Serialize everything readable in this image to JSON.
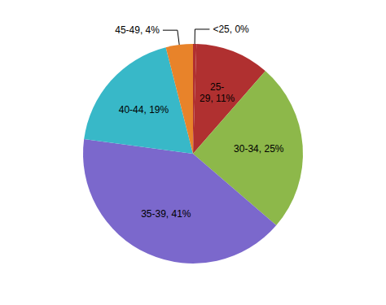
{
  "chart_data": {
    "type": "pie",
    "categories": [
      "<25, 0%",
      "25-\n29, 11%",
      "30-34, 25%",
      "35-39, 41%",
      "40-44, 19%",
      "45-49, 4%"
    ],
    "values": [
      0.5,
      11,
      25,
      41,
      19,
      4
    ],
    "colors": [
      "#B03030",
      "#B03030",
      "#8DB84A",
      "#7B68CC",
      "#38B8C8",
      "#E8832A"
    ]
  }
}
